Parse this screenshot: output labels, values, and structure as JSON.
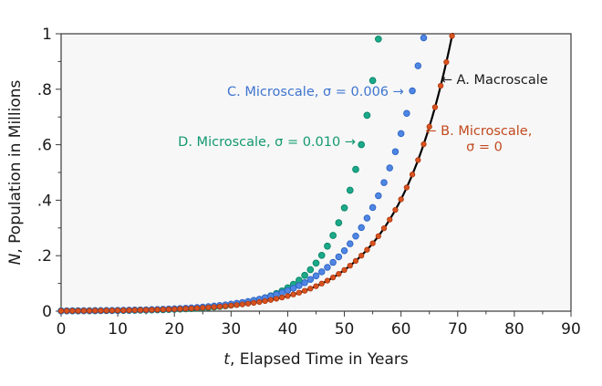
{
  "figure": {
    "bg": "#ffffff",
    "plot_bg": "#f7f7f7",
    "frame_color": "#3a3a3a",
    "tick_color": "#3a3a3a",
    "text_color": "#1a1a1a"
  },
  "chart_data": {
    "type": "scatter",
    "title": "",
    "xlabel": "t, Elapsed Time in Years",
    "ylabel": "N, Population in Millions",
    "xlabel_parts": [
      {
        "text": "t",
        "italic": true
      },
      {
        "text": ", Elapsed Time in Years",
        "italic": false
      }
    ],
    "ylabel_parts": [
      {
        "text": "N",
        "italic": true
      },
      {
        "text": ", Population in Millions",
        "italic": false
      }
    ],
    "xlim": [
      0,
      90
    ],
    "ylim": [
      0,
      1
    ],
    "grid": false,
    "legend_position": "in-plot text annotations with arrows",
    "x_major_ticks": [
      0,
      10,
      20,
      30,
      40,
      50,
      60,
      70,
      80,
      90
    ],
    "x_minor_ticks": [
      5,
      15,
      25,
      35,
      45,
      55,
      65,
      75,
      85
    ],
    "y_major_ticks": [
      {
        "value": 0,
        "label": "0"
      },
      {
        "value": 0.2,
        "label": ".2"
      },
      {
        "value": 0.4,
        "label": ".4"
      },
      {
        "value": 0.6,
        "label": ".6"
      },
      {
        "value": 0.8,
        "label": ".8"
      },
      {
        "value": 1,
        "label": "1"
      }
    ],
    "y_minor_ticks": [
      0.1,
      0.3,
      0.5,
      0.7,
      0.9
    ],
    "series": [
      {
        "id": "A",
        "label": "A. Macroscale",
        "type": "line",
        "color": "#000000",
        "line_width": 2.2,
        "model": "N(t) = 0.001 * exp(0.100*t)",
        "N0": 0.001,
        "r": 0.1,
        "r2": 0,
        "t_start": 0,
        "t_end": 69.6,
        "sample_step": 0.25
      },
      {
        "id": "B",
        "label": "B. Microscale, σ = 0",
        "type": "scatter",
        "color": "#d95321",
        "edge_color": "#b03a0e",
        "marker_radius": 2.7,
        "model": "N(t) = 0.001 * exp(0.100*t), dots every 1 year",
        "N0": 0.001,
        "r": 0.1,
        "r2": 0,
        "t_start": 0,
        "t_end": 69,
        "step": 1
      },
      {
        "id": "C",
        "label": "C. Microscale, σ = 0.006",
        "type": "scatter",
        "color": "#4f86e3",
        "edge_color": "#2d63c4",
        "marker_radius": 3.3,
        "model": "N(t) = 0.001 * exp(0.1077*t), dots every 1 year",
        "N0": 0.001,
        "r": 0.1077,
        "r2": 0,
        "t_start": 0,
        "t_end": 64,
        "step": 1
      },
      {
        "id": "D",
        "label": "D. Microscale, σ = 0.010",
        "type": "scatter",
        "color": "#1ba98a",
        "edge_color": "#0b8566",
        "marker_radius": 3.4,
        "model": "N(t) = 0.001 * exp(0.080*t + 0.000768*t^2), dots every 1 year",
        "N0": 0.001,
        "r": 0.08,
        "r2": 0.000768,
        "t_start": 0,
        "t_end": 56,
        "step": 1
      }
    ],
    "key_points": [
      {
        "series": "A",
        "note": "starts at N = 0.001 (t = 0), reaches N = 1.0 at t ≈ 69"
      },
      {
        "series": "B",
        "note": "last dot at t = 69, N ≈ 0.99 (tracks macroscale curve)"
      },
      {
        "series": "C",
        "note": "last dot at t = 64, N ≈ 0.98"
      },
      {
        "series": "D",
        "note": "last dot at t = 56, N ≈ 0.98"
      }
    ],
    "annotations": [
      {
        "id": "label-A",
        "text": "← A. Macroscale",
        "color": "#1a1a1a",
        "t": 67.1,
        "N": 0.836,
        "anchor": "start"
      },
      {
        "id": "label-B-line1",
        "text": "← B. Microscale,",
        "color": "#c2491d",
        "t": 64.3,
        "N": 0.651,
        "anchor": "start"
      },
      {
        "id": "label-B-line2",
        "text": "σ = 0",
        "color": "#c2491d",
        "t": 74.7,
        "N": 0.594,
        "anchor": "middle"
      },
      {
        "id": "label-C",
        "text": "C. Microscale, σ = 0.006 →",
        "color": "#3e74cf",
        "t": 60.5,
        "N": 0.793,
        "anchor": "end"
      },
      {
        "id": "label-D",
        "text": "D. Microscale, σ = 0.010 →",
        "color": "#12996f",
        "t": 52.0,
        "N": 0.612,
        "anchor": "end"
      }
    ]
  }
}
